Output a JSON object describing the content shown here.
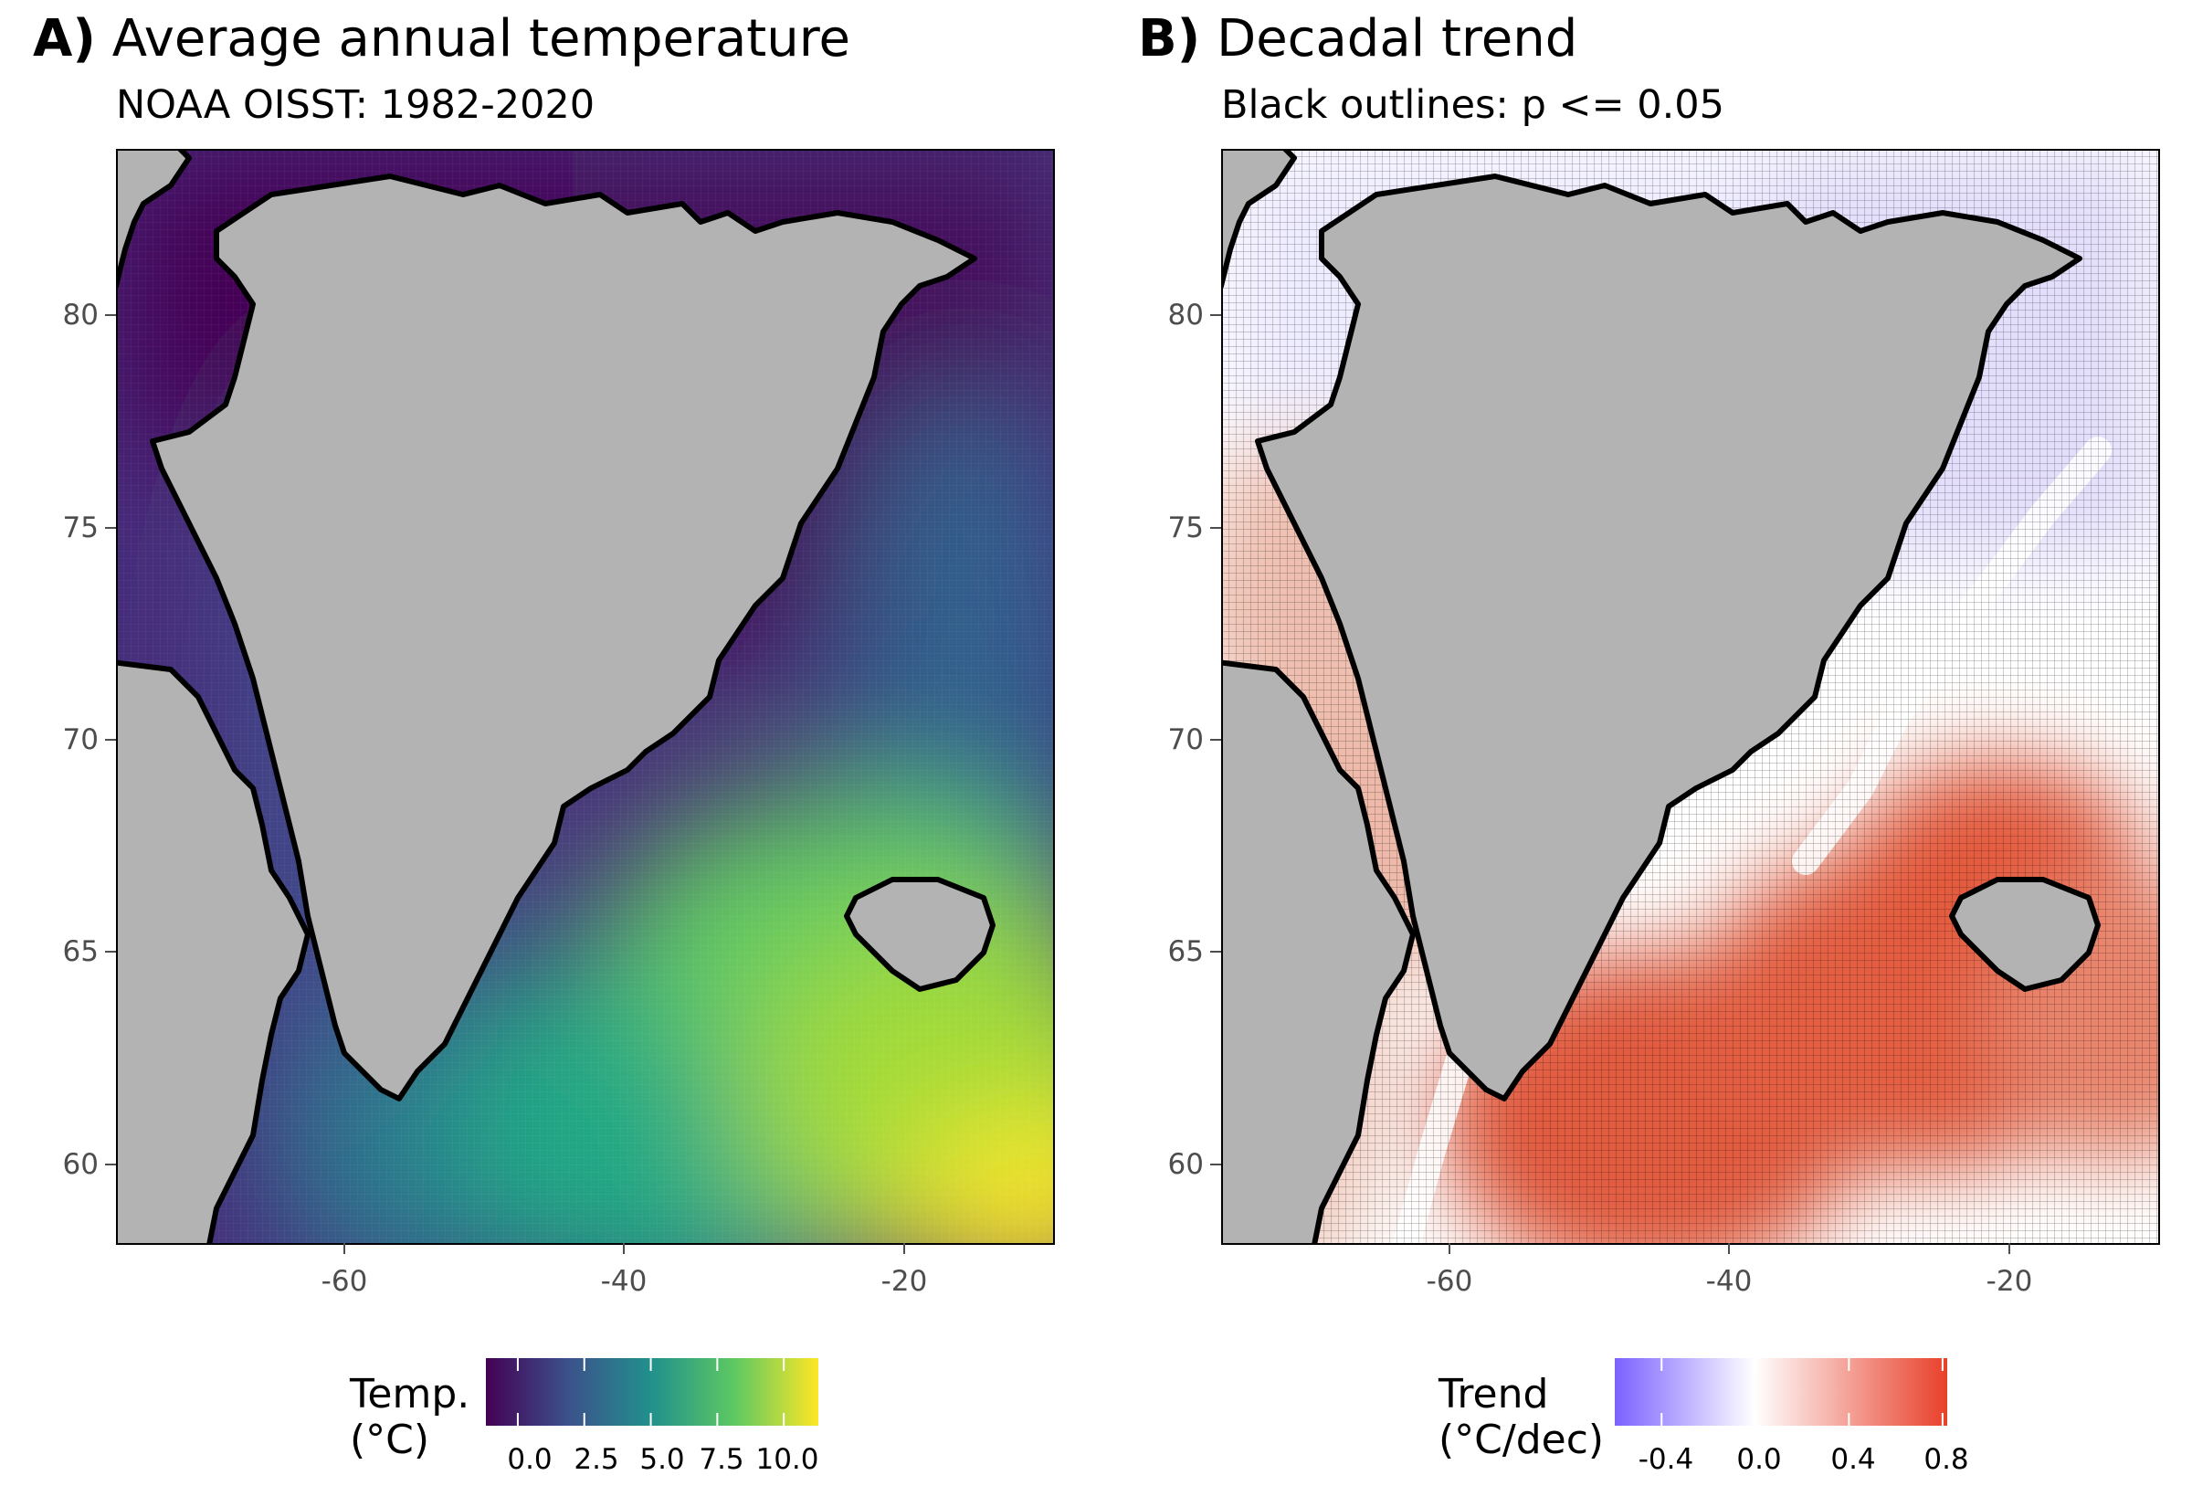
{
  "panels": [
    {
      "letter": "A)",
      "title": "Average annual temperature",
      "subtitle": "NOAA OISST: 1982-2020",
      "yticks": [
        "80",
        "75",
        "70",
        "65",
        "60"
      ],
      "xticks": [
        "-60",
        "-40",
        "-20"
      ],
      "legend_title": "Temp.\n(°C)",
      "legend_labels": [
        "0.0",
        "2.5",
        "5.0",
        "7.5",
        "10.0"
      ],
      "colors": [
        "#440154",
        "#3b528b",
        "#21918c",
        "#5ec962",
        "#fde725"
      ],
      "field": "Average annual sea surface temperature"
    },
    {
      "letter": "B)",
      "title": "Decadal trend",
      "subtitle": "Black outlines: p <= 0.05",
      "yticks": [
        "80",
        "75",
        "70",
        "65",
        "60"
      ],
      "xticks": [
        "-60",
        "-40",
        "-20"
      ],
      "legend_title": "Trend\n(°C/dec)",
      "legend_labels": [
        "-0.4",
        "0.0",
        "0.4",
        "0.8"
      ],
      "colors": [
        "#7b61ff",
        "#ffffff",
        "#e8402a"
      ],
      "field": "Decadal SST trend"
    }
  ],
  "map": {
    "lon_range": [
      -76,
      -9
    ],
    "lat_range": [
      58,
      84
    ],
    "land_color": "#b3b3b3",
    "coast_color": "#000000",
    "landmasses": [
      "Greenland",
      "Iceland",
      "Baffin Island",
      "Ellesmere Island"
    ]
  },
  "legend_scales": {
    "temp": {
      "min": -1.2,
      "max": 11.3,
      "ticks": [
        0,
        2.5,
        5.0,
        7.5,
        10.0
      ]
    },
    "trend": {
      "min": -0.6,
      "max": 0.82,
      "ticks": [
        -0.4,
        0.0,
        0.4,
        0.8
      ]
    }
  }
}
